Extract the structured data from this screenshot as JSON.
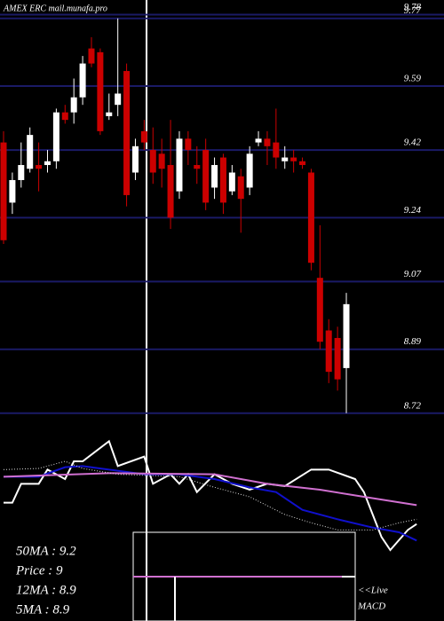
{
  "chart_data": {
    "type": "candlestick",
    "title": "AMEX  ERC mail.munafa.pro",
    "open": [
      9.44,
      9.28,
      9.34,
      9.37,
      9.38,
      9.38,
      9.39,
      9.52,
      9.52,
      9.56,
      9.69,
      9.68,
      9.51,
      9.54,
      9.63,
      9.36,
      9.47,
      9.42,
      9.41,
      9.38,
      9.31,
      9.45,
      9.38,
      9.42,
      9.32,
      9.4,
      9.31,
      9.35,
      9.32,
      9.44,
      9.45,
      9.44,
      9.39,
      9.4,
      9.39,
      9.36,
      9.08,
      8.94,
      8.92,
      8.84
    ],
    "high": [
      9.47,
      9.36,
      9.44,
      9.48,
      9.44,
      9.42,
      9.53,
      9.54,
      9.61,
      9.67,
      9.72,
      9.69,
      9.57,
      9.77,
      9.65,
      9.45,
      9.5,
      9.48,
      9.45,
      9.5,
      9.47,
      9.47,
      9.43,
      9.45,
      9.4,
      9.41,
      9.38,
      9.37,
      9.43,
      9.47,
      9.47,
      9.53,
      9.43,
      9.42,
      9.4,
      9.37,
      9.22,
      8.97,
      8.95,
      9.04
    ],
    "low": [
      9.17,
      9.25,
      9.32,
      9.36,
      9.31,
      9.36,
      9.37,
      9.49,
      9.49,
      9.54,
      9.64,
      9.46,
      9.5,
      9.51,
      9.27,
      9.34,
      9.42,
      9.33,
      9.32,
      9.21,
      9.29,
      9.38,
      9.33,
      9.26,
      9.29,
      9.25,
      9.3,
      9.2,
      9.3,
      9.43,
      9.38,
      9.37,
      9.37,
      9.36,
      9.37,
      9.1,
      8.89,
      8.8,
      8.78,
      8.72
    ],
    "close": [
      9.18,
      9.34,
      9.38,
      9.46,
      9.37,
      9.39,
      9.52,
      9.5,
      9.56,
      9.65,
      9.65,
      9.47,
      9.52,
      9.57,
      9.3,
      9.43,
      9.44,
      9.36,
      9.37,
      9.24,
      9.45,
      9.42,
      9.37,
      9.28,
      9.38,
      9.28,
      9.36,
      9.29,
      9.41,
      9.45,
      9.43,
      9.4,
      9.4,
      9.39,
      9.38,
      9.12,
      8.91,
      8.83,
      8.81,
      9.01
    ],
    "up_color": "#ffffff",
    "down_color": "#cc0000",
    "ylim": [
      8.71,
      9.8
    ],
    "yticks": [
      9.78,
      9.77,
      9.59,
      9.42,
      9.24,
      9.07,
      8.89,
      8.72
    ],
    "grid": true,
    "grid_color": "#1a1a66",
    "xlim": [
      0,
      49
    ],
    "lower_ylim": [
      8.8,
      9.7
    ],
    "lower_series": [
      {
        "color": "#ffffff",
        "x": [
          0,
          1,
          2,
          4,
          5,
          7,
          8,
          9,
          12,
          13,
          16,
          17,
          19,
          20,
          21,
          22,
          24,
          26,
          28,
          30,
          32,
          35,
          37,
          40,
          41,
          42,
          43,
          44,
          46,
          47
        ],
        "values": [
          9.2,
          9.2,
          9.36,
          9.36,
          9.48,
          9.4,
          9.55,
          9.55,
          9.72,
          9.51,
          9.59,
          9.36,
          9.44,
          9.36,
          9.44,
          9.29,
          9.44,
          9.36,
          9.31,
          9.36,
          9.34,
          9.48,
          9.48,
          9.4,
          9.29,
          9.1,
          8.91,
          8.8,
          8.97,
          9.02
        ]
      },
      {
        "color": "#1010cc",
        "x": [
          0,
          4,
          7,
          9,
          12,
          16,
          20,
          24,
          28,
          31,
          34,
          38,
          42,
          45,
          47
        ],
        "values": [
          9.42,
          9.42,
          9.5,
          9.51,
          9.48,
          9.44,
          9.44,
          9.4,
          9.33,
          9.29,
          9.14,
          9.06,
          8.99,
          8.95,
          8.88
        ]
      },
      {
        "color": "#d070d0",
        "x": [
          0,
          12,
          24,
          30,
          36,
          41,
          47
        ],
        "values": [
          9.42,
          9.45,
          9.44,
          9.36,
          9.31,
          9.25,
          9.18
        ]
      },
      {
        "color": "#dddddd",
        "dashed": true,
        "x": [
          0,
          4,
          7,
          9,
          13,
          20,
          24,
          28,
          32,
          35,
          38,
          42,
          45,
          47
        ],
        "values": [
          9.48,
          9.49,
          9.55,
          9.49,
          9.44,
          9.42,
          9.33,
          9.25,
          9.1,
          9.03,
          8.97,
          8.97,
          9.03,
          9.06
        ]
      }
    ],
    "stats": [
      "50MA : 9.2",
      "Price  : 9",
      "12MA : 8.9",
      "5MA  : 8.9"
    ],
    "live_label": "<<Live",
    "macd_label": "MACD"
  }
}
